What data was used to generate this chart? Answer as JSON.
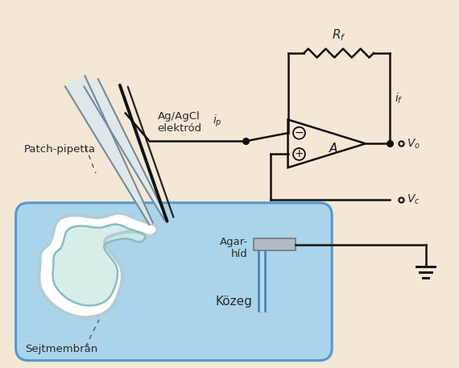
{
  "bg_color": "#f2e8d5",
  "bath_color": "#aad4ea",
  "bath_edge_color": "#5599cc",
  "cell_outer_color": "#e8f4f8",
  "cell_inner_color": "#d0ece4",
  "cell_border_color": "#a8c8d0",
  "pipette_fill": "#dce8ee",
  "pipette_edge": "#7a8a98",
  "electrode_color": "#1a1a1a",
  "circuit_color": "#111111",
  "text_color": "#2a2a2a",
  "label_patch_pipetta": "Patch-pipetta",
  "label_ag_agcl": "Ag/AgCl\nelektród",
  "label_sejtmembran": "Sejtmembrán",
  "label_kozeg": "Közeg",
  "label_agar_hid": "Agar-\nhíd"
}
